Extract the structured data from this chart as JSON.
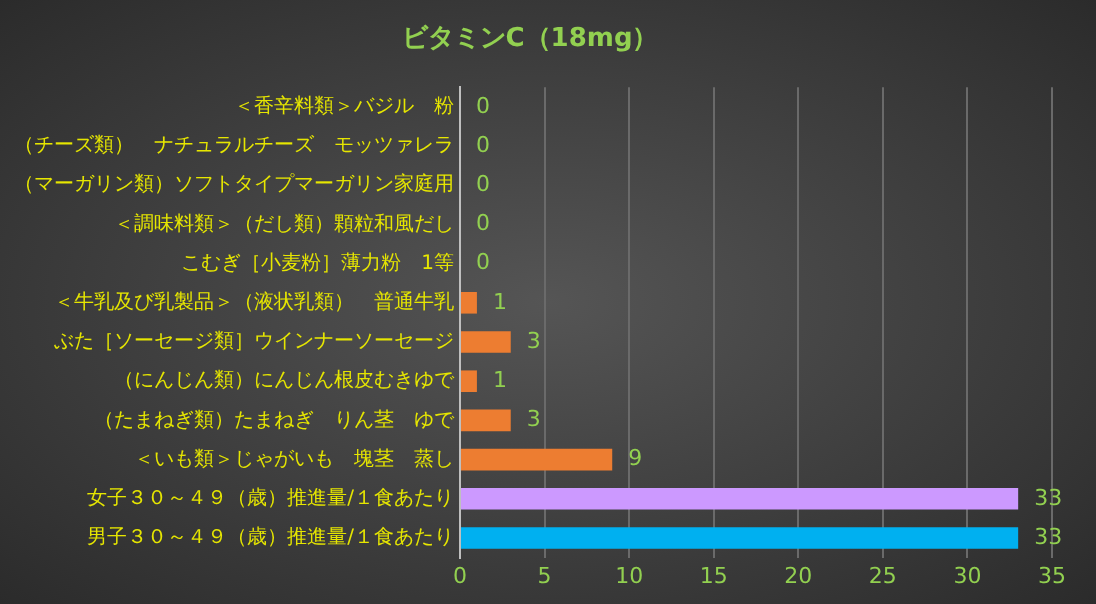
{
  "chart_data": {
    "type": "bar",
    "orientation": "horizontal",
    "title": "ビタミンC（18mg）",
    "categories": [
      "＜香辛料類＞バジル　粉",
      "（チーズ類）　ナチュラルチーズ　モッツァレラ",
      "（マーガリン類）ソフトタイプマーガリン家庭用",
      "＜調味料類＞（だし類）顆粒和風だし",
      "こむぎ［小麦粉］薄力粉　1等",
      "＜牛乳及び乳製品＞（液状乳類）　普通牛乳",
      "ぶた［ソーセージ類］ウインナーソーセージ",
      "（にんじん類）にんじん根皮むきゆで",
      "（たまねぎ類）たまねぎ　りん茎　ゆで",
      "＜いも類＞じゃがいも　塊茎　蒸し",
      "女子３０～４９（歳）推進量/１食あたり",
      "男子３０～４９（歳）推進量/１食あたり"
    ],
    "values": [
      0,
      0,
      0,
      0,
      0,
      1,
      3,
      1,
      3,
      9,
      33,
      33
    ],
    "colors": [
      "#ed7d31",
      "#ed7d31",
      "#ed7d31",
      "#ed7d31",
      "#ed7d31",
      "#ed7d31",
      "#ed7d31",
      "#ed7d31",
      "#ed7d31",
      "#ed7d31",
      "#cc99ff",
      "#00b0f0"
    ],
    "xlim": [
      0,
      35
    ],
    "xticks": [
      0,
      5,
      10,
      15,
      20,
      25,
      30,
      35
    ],
    "grid": "x",
    "data_labels": true,
    "legend": false
  }
}
